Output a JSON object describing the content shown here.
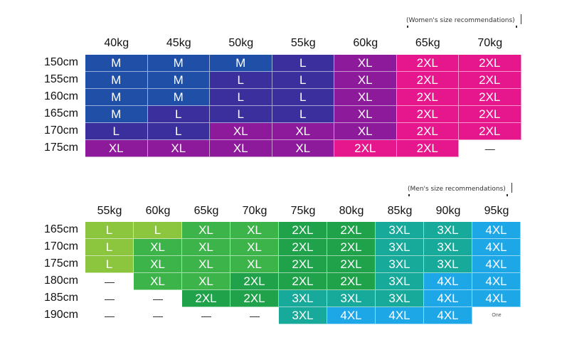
{
  "women": {
    "caption": "(Women's size recommendations)",
    "weights": [
      "40kg",
      "45kg",
      "50kg",
      "55kg",
      "60kg",
      "65kg",
      "70kg"
    ],
    "heights": [
      "150cm",
      "155cm",
      "160cm",
      "165cm",
      "170cm",
      "175cm"
    ],
    "cells": [
      [
        "M",
        "M",
        "M",
        "L",
        "XL",
        "2XL",
        "2XL"
      ],
      [
        "M",
        "M",
        "L",
        "L",
        "XL",
        "2XL",
        "2XL"
      ],
      [
        "M",
        "M",
        "L",
        "L",
        "XL",
        "2XL",
        "2XL"
      ],
      [
        "M",
        "L",
        "L",
        "L",
        "XL",
        "2XL",
        "2XL"
      ],
      [
        "L",
        "L",
        "XL",
        "XL",
        "XL",
        "2XL",
        "2XL"
      ],
      [
        "XL",
        "XL",
        "XL",
        "XL",
        "2XL",
        "2XL",
        "—"
      ]
    ],
    "colors": {
      "M": "#1f4fa6",
      "L": "#3a2f9c",
      "XL": "#8d1a9a",
      "2XL": "#e6168c"
    }
  },
  "men": {
    "caption": "(Men's size recommendations)",
    "weights": [
      "55kg",
      "60kg",
      "65kg",
      "70kg",
      "75kg",
      "80kg",
      "85kg",
      "90kg",
      "95kg"
    ],
    "heights": [
      "165cm",
      "170cm",
      "175cm",
      "180cm",
      "185cm",
      "190cm"
    ],
    "cells": [
      [
        "L",
        "L",
        "XL",
        "XL",
        "2XL",
        "2XL",
        "3XL",
        "3XL",
        "4XL"
      ],
      [
        "L",
        "XL",
        "XL",
        "XL",
        "2XL",
        "2XL",
        "3XL",
        "3XL",
        "4XL"
      ],
      [
        "L",
        "XL",
        "XL",
        "XL",
        "2XL",
        "2XL",
        "3XL",
        "3XL",
        "4XL"
      ],
      [
        "—",
        "XL",
        "XL",
        "2XL",
        "2XL",
        "2XL",
        "3XL",
        "4XL",
        "4XL"
      ],
      [
        "—",
        "—",
        "2XL",
        "2XL",
        "3XL",
        "3XL",
        "3XL",
        "4XL",
        "4XL"
      ],
      [
        "—",
        "—",
        "—",
        "—",
        "3XL",
        "4XL",
        "4XL",
        "4XL",
        "One"
      ]
    ],
    "colors": {
      "L": "#8cc63e",
      "XL": "#3cb44a",
      "2XL": "#1fa24a",
      "3XL": "#17a99a",
      "4XL": "#1ea7e6"
    }
  }
}
